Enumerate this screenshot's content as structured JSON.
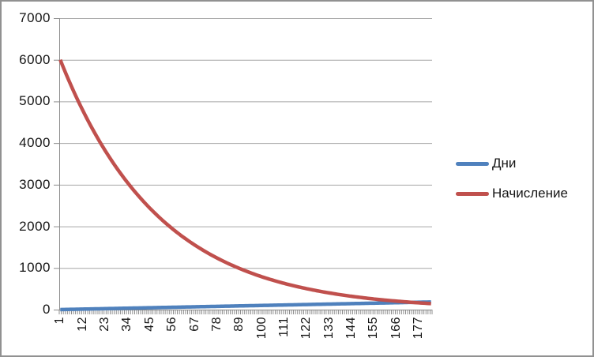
{
  "chart_data": {
    "type": "line",
    "title": "",
    "xlabel": "",
    "ylabel": "",
    "ylim": [
      0,
      7000
    ],
    "grid": true,
    "legend_position": "right",
    "yticks": [
      0,
      1000,
      2000,
      3000,
      4000,
      5000,
      6000,
      7000
    ],
    "xtick_labels": [
      1,
      12,
      23,
      34,
      45,
      56,
      67,
      78,
      89,
      100,
      111,
      122,
      133,
      144,
      155,
      166,
      177
    ],
    "x": [
      1,
      2,
      3,
      4,
      5,
      6,
      7,
      8,
      9,
      10,
      11,
      12,
      13,
      14,
      15,
      16,
      17,
      18,
      19,
      20,
      21,
      22,
      23,
      24,
      25,
      26,
      27,
      28,
      29,
      30,
      31,
      32,
      33,
      34,
      35,
      36,
      37,
      38,
      39,
      40,
      41,
      42,
      43,
      44,
      45,
      46,
      47,
      48,
      49,
      50,
      51,
      52,
      53,
      54,
      55,
      56,
      57,
      58,
      59,
      60,
      61,
      62,
      63,
      64,
      65,
      66,
      67,
      68,
      69,
      70,
      71,
      72,
      73,
      74,
      75,
      76,
      77,
      78,
      79,
      80,
      81,
      82,
      83,
      84,
      85,
      86,
      87,
      88,
      89,
      90,
      91,
      92,
      93,
      94,
      95,
      96,
      97,
      98,
      99,
      100,
      101,
      102,
      103,
      104,
      105,
      106,
      107,
      108,
      109,
      110,
      111,
      112,
      113,
      114,
      115,
      116,
      117,
      118,
      119,
      120,
      121,
      122,
      123,
      124,
      125,
      126,
      127,
      128,
      129,
      130,
      131,
      132,
      133,
      134,
      135,
      136,
      137,
      138,
      139,
      140,
      141,
      142,
      143,
      144,
      145,
      146,
      147,
      148,
      149,
      150,
      151,
      152,
      153,
      154,
      155,
      156,
      157,
      158,
      159,
      160,
      161,
      162,
      163,
      164,
      165,
      166,
      167,
      168,
      169,
      170,
      171,
      172,
      173,
      174,
      175,
      176,
      177,
      178,
      179,
      180,
      181,
      182,
      183
    ],
    "series": [
      {
        "name": "Дни",
        "color": "#4F81BD",
        "values": [
          1,
          2,
          3,
          4,
          5,
          6,
          7,
          8,
          9,
          10,
          11,
          12,
          13,
          14,
          15,
          16,
          17,
          18,
          19,
          20,
          21,
          22,
          23,
          24,
          25,
          26,
          27,
          28,
          29,
          30,
          31,
          32,
          33,
          34,
          35,
          36,
          37,
          38,
          39,
          40,
          41,
          42,
          43,
          44,
          45,
          46,
          47,
          48,
          49,
          50,
          51,
          52,
          53,
          54,
          55,
          56,
          57,
          58,
          59,
          60,
          61,
          62,
          63,
          64,
          65,
          66,
          67,
          68,
          69,
          70,
          71,
          72,
          73,
          74,
          75,
          76,
          77,
          78,
          79,
          80,
          81,
          82,
          83,
          84,
          85,
          86,
          87,
          88,
          89,
          90,
          91,
          92,
          93,
          94,
          95,
          96,
          97,
          98,
          99,
          100,
          101,
          102,
          103,
          104,
          105,
          106,
          107,
          108,
          109,
          110,
          111,
          112,
          113,
          114,
          115,
          116,
          117,
          118,
          119,
          120,
          121,
          122,
          123,
          124,
          125,
          126,
          127,
          128,
          129,
          130,
          131,
          132,
          133,
          134,
          135,
          136,
          137,
          138,
          139,
          140,
          141,
          142,
          143,
          144,
          145,
          146,
          147,
          148,
          149,
          150,
          151,
          152,
          153,
          154,
          155,
          156,
          157,
          158,
          159,
          160,
          161,
          162,
          163,
          164,
          165,
          166,
          167,
          168,
          169,
          170,
          171,
          172,
          173,
          174,
          175,
          176,
          177,
          178,
          179,
          180,
          181,
          182,
          183
        ]
      },
      {
        "name": "Начисление",
        "color": "#C0504D",
        "values": [
          6000,
          5878,
          5759,
          5642,
          5528,
          5416,
          5306,
          5198,
          5093,
          4989,
          4888,
          4789,
          4692,
          4597,
          4503,
          4412,
          4323,
          4235,
          4149,
          4065,
          3982,
          3902,
          3822,
          3745,
          3669,
          3594,
          3522,
          3450,
          3380,
          3312,
          3244,
          3178,
          3114,
          3051,
          2989,
          2928,
          2869,
          2811,
          2754,
          2698,
          2643,
          2589,
          2537,
          2485,
          2435,
          2386,
          2337,
          2290,
          2243,
          2198,
          2153,
          2110,
          2067,
          2025,
          1984,
          1943,
          1904,
          1865,
          1828,
          1790,
          1754,
          1719,
          1684,
          1649,
          1616,
          1583,
          1551,
          1520,
          1489,
          1459,
          1429,
          1400,
          1372,
          1344,
          1316,
          1290,
          1264,
          1238,
          1213,
          1188,
          1164,
          1140,
          1117,
          1095,
          1072,
          1051,
          1029,
          1008,
          988,
          968,
          948,
          929,
          910,
          892,
          874,
          856,
          838,
          821,
          805,
          788,
          772,
          757,
          741,
          726,
          712,
          697,
          683,
          669,
          656,
          642,
          629,
          616,
          604,
          592,
          580,
          568,
          556,
          545,
          534,
          523,
          513,
          502,
          492,
          482,
          472,
          463,
          453,
          444,
          435,
          426,
          418,
          409,
          401,
          393,
          385,
          377,
          369,
          362,
          354,
          347,
          340,
          333,
          326,
          320,
          313,
          307,
          301,
          295,
          289,
          283,
          277,
          271,
          266,
          261,
          255,
          250,
          245,
          240,
          235,
          230,
          226,
          221,
          217,
          212,
          208,
          204,
          200,
          196,
          192,
          188,
          184,
          180,
          176,
          173,
          169,
          166,
          163,
          159,
          156,
          153,
          150,
          147,
          144
        ]
      }
    ]
  },
  "colors": {
    "gridline": "#a6a6a6",
    "axis": "#8c8c8c",
    "tick": "#808080",
    "frame_border": "#919191",
    "background": "#ffffff",
    "text": "#151515"
  }
}
